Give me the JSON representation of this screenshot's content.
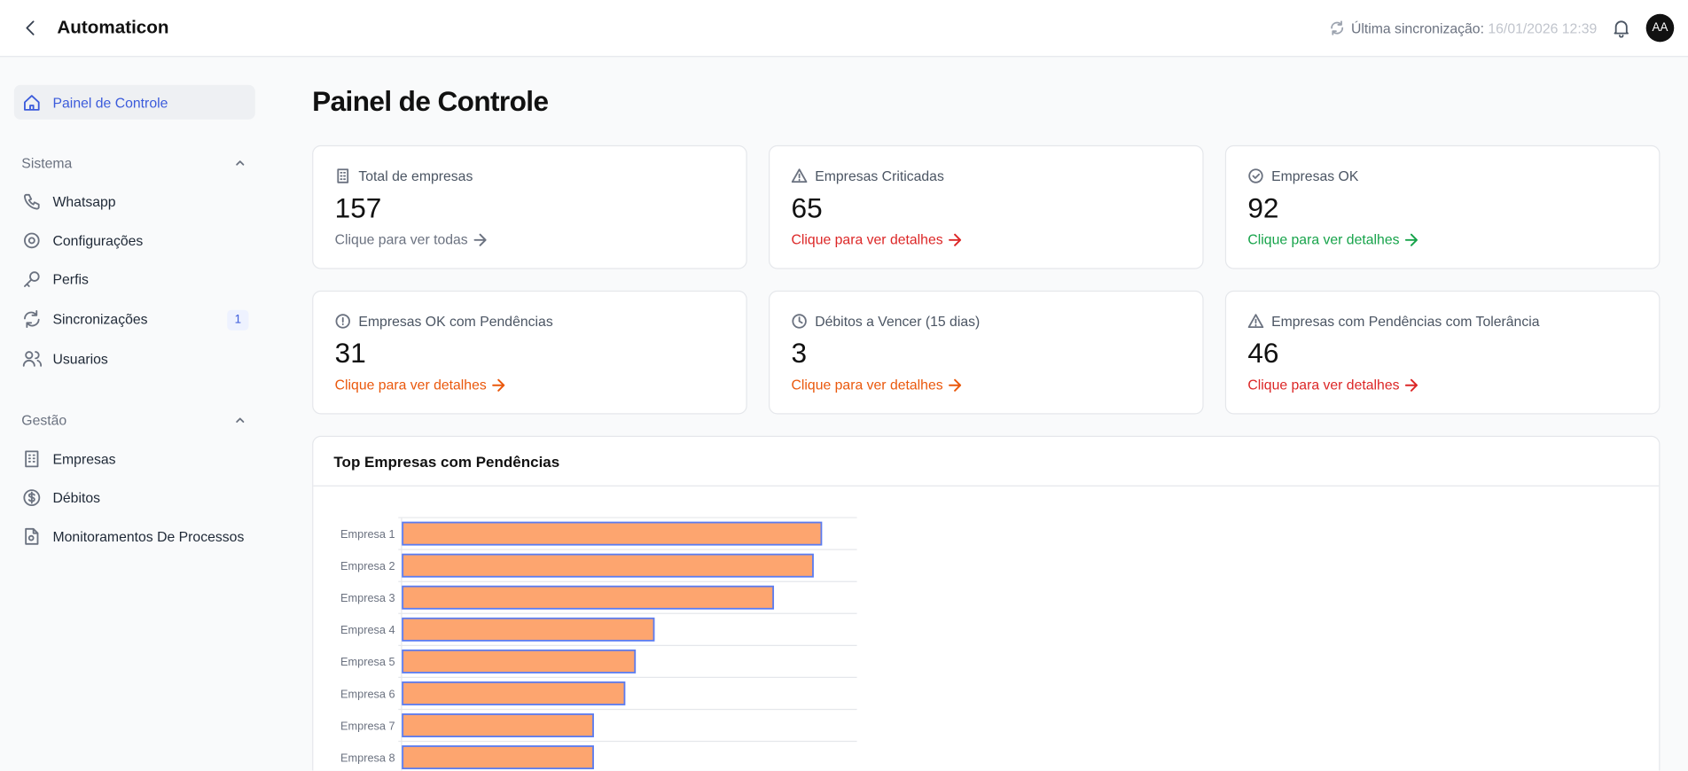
{
  "header": {
    "title": "Automaticon",
    "sync_label": "Última sincronização:",
    "sync_time": "16/01/2026 12:39",
    "avatar": "AA"
  },
  "sidebar": {
    "active": "Painel de Controle",
    "sections": [
      {
        "title": "Sistema",
        "items": [
          {
            "label": "Whatsapp"
          },
          {
            "label": "Configurações"
          },
          {
            "label": "Perfis"
          },
          {
            "label": "Sincronizações",
            "badge": 1
          },
          {
            "label": "Usuarios"
          }
        ]
      },
      {
        "title": "Gestão",
        "items": [
          {
            "label": "Empresas"
          },
          {
            "label": "Débitos"
          },
          {
            "label": "Monitoramentos De Processos"
          }
        ]
      }
    ]
  },
  "page_title": "Painel de Controle",
  "cards": [
    {
      "title": "Total de empresas",
      "value": 157,
      "link": "Clique para ver todas",
      "color": "#6b7280"
    },
    {
      "title": "Empresas Criticadas",
      "value": 65,
      "link": "Clique para ver detalhes",
      "color": "#dc2626"
    },
    {
      "title": "Empresas OK",
      "value": 92,
      "link": "Clique para ver detalhes",
      "color": "#16a34a"
    },
    {
      "title": "Empresas OK com Pendências",
      "value": 31,
      "link": "Clique para ver detalhes",
      "color": "#ea580c"
    },
    {
      "title": "Débitos a Vencer (15 dias)",
      "value": 3,
      "link": "Clique para ver detalhes",
      "color": "#ea580c"
    },
    {
      "title": "Empresas com Pendências com Tolerância",
      "value": 46,
      "link": "Clique para ver detalhes",
      "color": "#dc2626"
    }
  ],
  "chart_data": {
    "type": "bar",
    "orientation": "horizontal",
    "title": "Top Empresas com Pendências",
    "categories": [
      "Empresa 1",
      "Empresa 2",
      "Empresa 3",
      "Empresa 4",
      "Empresa 5",
      "Empresa 6",
      "Empresa 7",
      "Empresa 8"
    ],
    "values": [
      20,
      19.6,
      17.7,
      12,
      11.1,
      10.6,
      9.1,
      9.1
    ],
    "color": "#fda56f",
    "border_color": "#5b7cf0",
    "xlim": [
      0,
      21.7
    ]
  }
}
